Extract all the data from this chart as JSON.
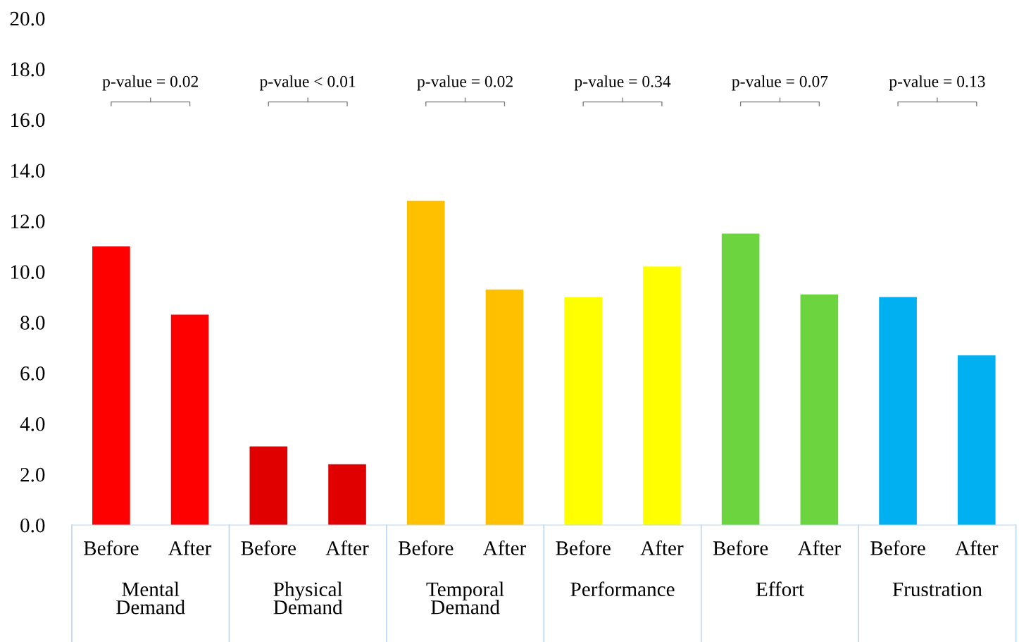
{
  "chart_data": {
    "type": "bar",
    "categories": [
      "Before",
      "After",
      "Before",
      "After",
      "Before",
      "After",
      "Before",
      "After",
      "Before",
      "After",
      "Before",
      "After"
    ],
    "values": [
      11.0,
      8.3,
      3.1,
      2.4,
      12.8,
      9.3,
      9.0,
      10.2,
      11.5,
      9.1,
      9.0,
      6.7
    ],
    "colors": [
      "#ff0000",
      "#ff0000",
      "#e00000",
      "#e00000",
      "#ffc000",
      "#ffc000",
      "#ffff00",
      "#ffff00",
      "#6cd43f",
      "#6cd43f",
      "#00b0f0",
      "#00b0f0"
    ],
    "ylim": [
      0,
      20
    ],
    "yticks": [
      {
        "value": 0,
        "label": "0.0"
      },
      {
        "value": 2,
        "label": "2.0"
      },
      {
        "value": 4,
        "label": "4.0"
      },
      {
        "value": 6,
        "label": "6.0"
      },
      {
        "value": 8,
        "label": "8.0"
      },
      {
        "value": 10,
        "label": "10.0"
      },
      {
        "value": 12,
        "label": "12.0"
      },
      {
        "value": 14,
        "label": "14.0"
      },
      {
        "value": 16,
        "label": "16.0"
      },
      {
        "value": 18,
        "label": "18.0"
      },
      {
        "value": 20,
        "label": "20.0"
      }
    ],
    "grid": false,
    "annotations": [
      "p-value = 0.02",
      "p-value < 0.01",
      "p-value = 0.02",
      "p-value = 0.34",
      "p-value = 0.07",
      "p-value = 0.13",
      "Mental\nDemand",
      "Physical\nDemand",
      "Temporal\nDemand",
      "Performance",
      "Effort",
      "Frustration"
    ]
  }
}
